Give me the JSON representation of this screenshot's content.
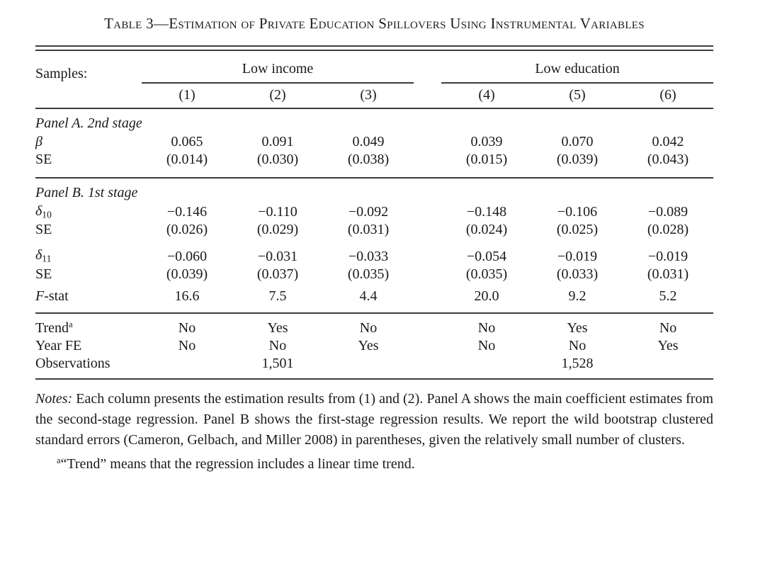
{
  "title": "Table 3—Estimation of Private Education Spillovers Using Instrumental Variables",
  "table": {
    "samples_label": "Samples:",
    "groups": [
      {
        "label": "Low income",
        "columns": [
          "(1)",
          "(2)",
          "(3)"
        ]
      },
      {
        "label": "Low education",
        "columns": [
          "(4)",
          "(5)",
          "(6)"
        ]
      }
    ],
    "panel_a": {
      "heading": "Panel A. 2nd stage",
      "beta": {
        "label": "β",
        "values": [
          "0.065",
          "0.091",
          "0.049",
          "0.039",
          "0.070",
          "0.042"
        ]
      },
      "beta_se": {
        "label": "SE",
        "values": [
          "(0.014)",
          "(0.030)",
          "(0.038)",
          "(0.015)",
          "(0.039)",
          "(0.043)"
        ]
      }
    },
    "panel_b": {
      "heading": "Panel B. 1st stage",
      "delta10": {
        "label_base": "δ",
        "label_sub": "10",
        "values": [
          "−0.146",
          "−0.110",
          "−0.092",
          "−0.148",
          "−0.106",
          "−0.089"
        ]
      },
      "delta10_se": {
        "label": "SE",
        "values": [
          "(0.026)",
          "(0.029)",
          "(0.031)",
          "(0.024)",
          "(0.025)",
          "(0.028)"
        ]
      },
      "delta11": {
        "label_base": "δ",
        "label_sub": "11",
        "values": [
          "−0.060",
          "−0.031",
          "−0.033",
          "−0.054",
          "−0.019",
          "−0.019"
        ]
      },
      "delta11_se": {
        "label": "SE",
        "values": [
          "(0.039)",
          "(0.037)",
          "(0.035)",
          "(0.035)",
          "(0.033)",
          "(0.031)"
        ]
      },
      "fstat": {
        "label_italic": "F",
        "label_rest": "-stat",
        "values": [
          "16.6",
          "7.5",
          "4.4",
          "20.0",
          "9.2",
          "5.2"
        ]
      }
    },
    "controls": {
      "trend": {
        "label_base": "Trend",
        "label_sup": "a",
        "values": [
          "No",
          "Yes",
          "No",
          "No",
          "Yes",
          "No"
        ]
      },
      "year_fe": {
        "label": "Year FE",
        "values": [
          "No",
          "No",
          "Yes",
          "No",
          "No",
          "Yes"
        ]
      },
      "observations": {
        "label": "Observations",
        "low_income_value": "1,501",
        "low_education_value": "1,528"
      }
    }
  },
  "notes": {
    "label": "Notes:",
    "body": "Each column presents the estimation results from (1) and (2). Panel A shows the main coefficient estimates from the second-stage regression. Panel B shows the first-stage regression results. We report the wild bootstrap clustered standard errors (Cameron, Gelbach, and Miller 2008) in parentheses, given the relatively small number of clusters.",
    "footnote_marker": "a",
    "footnote_text": "“Trend” means that the regression includes a linear time trend."
  }
}
